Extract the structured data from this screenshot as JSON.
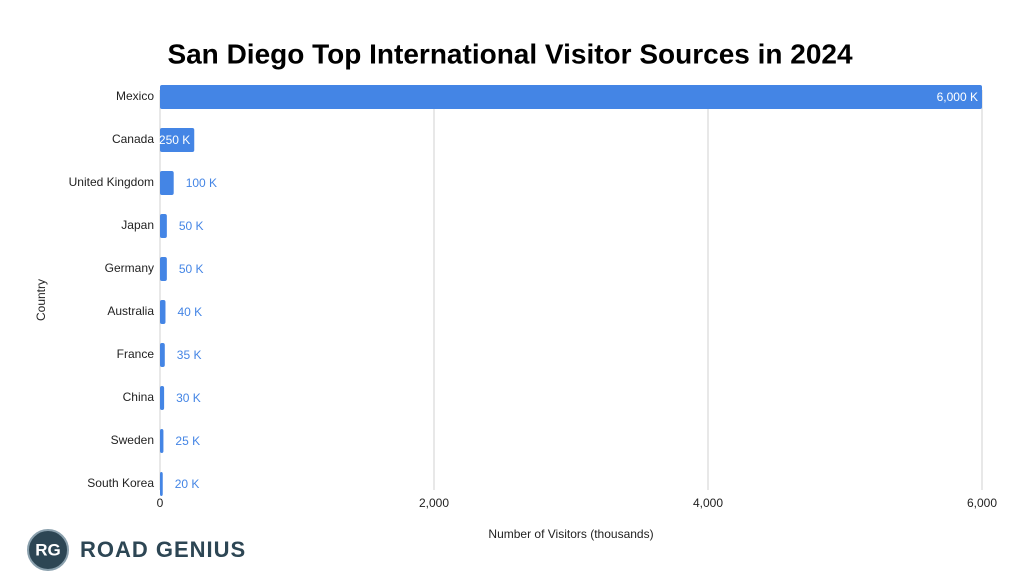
{
  "chart_data": {
    "type": "hbar",
    "title": "San Diego Top International Visitor Sources in 2024",
    "x_label": "Number of Visitors (thousands)",
    "y_label": "Country",
    "categories": [
      "Mexico",
      "Canada",
      "United Kingdom",
      "Japan",
      "Germany",
      "Australia",
      "France",
      "China",
      "Sweden",
      "South Korea"
    ],
    "values": [
      6000,
      250,
      100,
      50,
      50,
      40,
      35,
      30,
      25,
      20
    ],
    "value_labels": [
      "6,000 K",
      "250 K",
      "100 K",
      "50 K",
      "50 K",
      "40 K",
      "35 K",
      "30 K",
      "25 K",
      "20 K"
    ],
    "color": "#4485e5",
    "xlim": [
      0,
      6000
    ],
    "xticks": [
      0,
      {
        "value": 2000,
        "label": "2,000"
      },
      {
        "value": 4000,
        "label": "4,000"
      },
      {
        "value": 6000,
        "label": "6,000"
      }
    ],
    "grid": true
  },
  "branding": {
    "initials": "RG",
    "name": "ROAD GENIUS"
  }
}
